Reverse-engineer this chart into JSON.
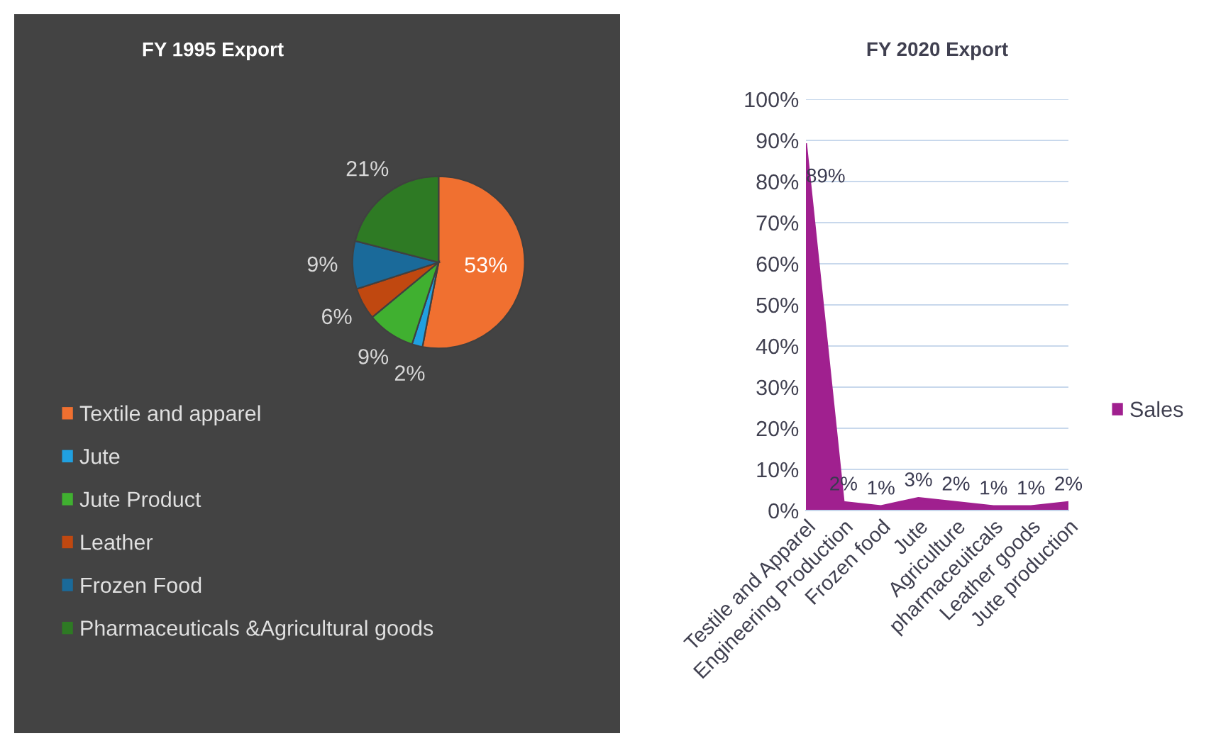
{
  "chart_data": [
    {
      "type": "pie",
      "title": "FY 1995 Export",
      "categories": [
        "Textile and apparel",
        "Jute",
        "Jute Product",
        "Leather",
        "Frozen Food",
        "Pharmaceuticals &Agricultural goods"
      ],
      "values": [
        53,
        2,
        9,
        6,
        9,
        21
      ],
      "value_labels": [
        "53%",
        "2%",
        "9%",
        "6%",
        "9%",
        "21%"
      ],
      "colors": [
        "#f07030",
        "#20a0e0",
        "#40b030",
        "#c04810",
        "#1a6a9a",
        "#2e7a24"
      ],
      "legend": "bottom left"
    },
    {
      "type": "area",
      "title": "FY 2020 Export",
      "categories": [
        "Testile and Apparel",
        "Engineering Production",
        "Frozen food",
        "Jute",
        "Agriculture",
        "pharmaceuitcals",
        "Leather goods",
        "Jute production"
      ],
      "series": [
        {
          "name": "Sales",
          "color": "#a0208f",
          "values": [
            89,
            2,
            1,
            3,
            2,
            1,
            1,
            2
          ],
          "value_labels": [
            "89%",
            "2%",
            "1%",
            "3%",
            "2%",
            "1%",
            "1%",
            "2%"
          ]
        }
      ],
      "ylim": [
        0,
        100
      ],
      "yticks": [
        {
          "value": 0,
          "label": "0%"
        },
        {
          "value": 10,
          "label": "10%"
        },
        {
          "value": 20,
          "label": "20%"
        },
        {
          "value": 30,
          "label": "30%"
        },
        {
          "value": 40,
          "label": "40%"
        },
        {
          "value": 50,
          "label": "50%"
        },
        {
          "value": 60,
          "label": "60%"
        },
        {
          "value": 70,
          "label": "70%"
        },
        {
          "value": 80,
          "label": "80%"
        },
        {
          "value": 90,
          "label": "90%"
        },
        {
          "value": 100,
          "label": "100%"
        }
      ],
      "grid": "y",
      "legend": "right"
    }
  ]
}
